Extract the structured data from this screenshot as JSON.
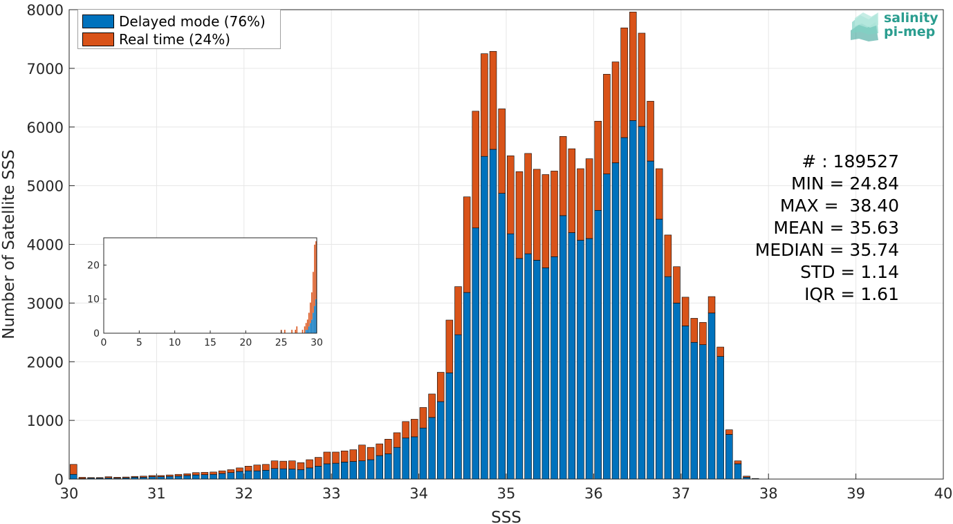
{
  "colors": {
    "delayed": "#0072bd",
    "realtime": "#d95319",
    "grid": "#e6e6e6",
    "axis": "#262626",
    "logo": "#2a9d8f"
  },
  "legend": {
    "delayed_label": "Delayed mode (76%)",
    "realtime_label": "Real time (24%)"
  },
  "logo": {
    "line1": "salinity",
    "line2": "pi-mep"
  },
  "stats": {
    "count": "# : 189527",
    "min": "MIN = 24.84",
    "max": "MAX =  38.40",
    "mean": "MEAN = 35.63",
    "median": "MEDIAN = 35.74",
    "std": "STD = 1.14",
    "iqr": "IQR = 1.61"
  },
  "chart_data": [
    {
      "type": "bar",
      "stacked": true,
      "xlabel": "SSS",
      "ylabel": "Number of Satellite SSS",
      "xlim": [
        30,
        40
      ],
      "ylim": [
        0,
        8000
      ],
      "xticks": [
        "30",
        "31",
        "32",
        "33",
        "34",
        "35",
        "36",
        "37",
        "38",
        "39",
        "40"
      ],
      "yticks": [
        "0",
        "1000",
        "2000",
        "3000",
        "4000",
        "5000",
        "6000",
        "7000",
        "8000"
      ],
      "grid": true,
      "legend_position": "top-left",
      "bin_width": 0.1,
      "x": [
        30.05,
        30.15,
        30.25,
        30.35,
        30.45,
        30.55,
        30.65,
        30.75,
        30.85,
        30.95,
        31.05,
        31.15,
        31.25,
        31.35,
        31.45,
        31.55,
        31.65,
        31.75,
        31.85,
        31.95,
        32.05,
        32.15,
        32.25,
        32.35,
        32.45,
        32.55,
        32.65,
        32.75,
        32.85,
        32.95,
        33.05,
        33.15,
        33.25,
        33.35,
        33.45,
        33.55,
        33.65,
        33.75,
        33.85,
        33.95,
        34.05,
        34.15,
        34.25,
        34.35,
        34.45,
        34.55,
        34.65,
        34.75,
        34.85,
        34.95,
        35.05,
        35.15,
        35.25,
        35.35,
        35.45,
        35.55,
        35.65,
        35.75,
        35.85,
        35.95,
        36.05,
        36.15,
        36.25,
        36.35,
        36.45,
        36.55,
        36.65,
        36.75,
        36.85,
        36.95,
        37.05,
        37.15,
        37.25,
        37.35,
        37.45,
        37.55,
        37.65,
        37.75,
        37.85,
        37.95
      ],
      "series": [
        {
          "name": "Delayed mode (76%)",
          "values": [
            80,
            10,
            15,
            15,
            20,
            15,
            20,
            30,
            30,
            40,
            40,
            45,
            50,
            60,
            70,
            75,
            80,
            95,
            110,
            130,
            140,
            140,
            150,
            180,
            175,
            170,
            160,
            190,
            220,
            260,
            270,
            290,
            300,
            310,
            330,
            400,
            430,
            540,
            700,
            720,
            870,
            1050,
            1320,
            1810,
            2460,
            3180,
            4280,
            5500,
            5620,
            4870,
            4180,
            3760,
            3840,
            3730,
            3600,
            3790,
            4490,
            4200,
            4070,
            4100,
            4580,
            5200,
            5390,
            5820,
            6110,
            6010,
            5420,
            4430,
            3450,
            3000,
            2610,
            2330,
            2290,
            2830,
            2090,
            760,
            260,
            30,
            10,
            0
          ]
        },
        {
          "name": "Real time (24%)",
          "values": [
            170,
            20,
            10,
            10,
            20,
            15,
            15,
            15,
            20,
            20,
            20,
            25,
            30,
            30,
            40,
            40,
            40,
            45,
            50,
            60,
            80,
            100,
            100,
            130,
            130,
            140,
            120,
            140,
            150,
            200,
            190,
            190,
            200,
            270,
            210,
            200,
            250,
            250,
            280,
            300,
            350,
            400,
            500,
            900,
            820,
            1630,
            1990,
            1750,
            1670,
            1440,
            1330,
            1480,
            1710,
            1550,
            1590,
            1460,
            1350,
            1430,
            1220,
            1360,
            1520,
            1700,
            1720,
            1870,
            1850,
            1590,
            1020,
            860,
            710,
            620,
            490,
            410,
            380,
            280,
            160,
            80,
            50,
            20,
            0,
            0
          ]
        }
      ]
    },
    {
      "type": "bar",
      "stacked": true,
      "inset": true,
      "xlim": [
        0,
        30
      ],
      "ylim": [
        0,
        28
      ],
      "xticks": [
        "0",
        "5",
        "10",
        "15",
        "20",
        "25",
        "30"
      ],
      "yticks": [
        "0",
        "10",
        "20"
      ],
      "x": [
        25.0,
        25.5,
        26.5,
        27.0,
        27.2,
        28.0,
        28.3,
        28.5,
        28.7,
        28.9,
        29.1,
        29.3,
        29.5,
        29.7,
        29.9
      ],
      "series": [
        {
          "name": "Delayed mode (76%)",
          "values": [
            0,
            0,
            0,
            0,
            0,
            0,
            0,
            1,
            1,
            2,
            3,
            4,
            6,
            8,
            10
          ]
        },
        {
          "name": "Real time (24%)",
          "values": [
            1,
            1,
            1,
            1,
            2,
            1,
            2,
            2,
            3,
            4,
            6,
            8,
            12,
            18,
            17
          ]
        }
      ]
    }
  ]
}
